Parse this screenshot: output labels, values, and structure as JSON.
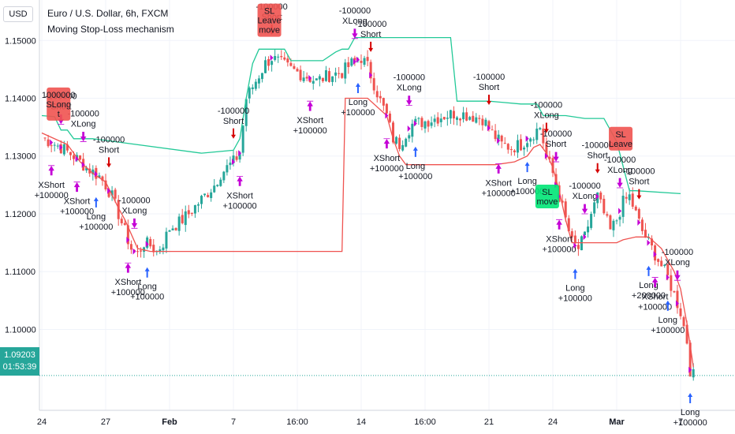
{
  "header": {
    "currency_button": "USD",
    "title": "Euro / U.S. Dollar, 6h, FXCM",
    "subtitle": "Moving Stop-Loss mechanism"
  },
  "price_tag": {
    "price": "1.09203",
    "countdown": "01:53:39"
  },
  "colors": {
    "up": "#26a69a",
    "down": "#ef5350",
    "long_line": "#ef5350",
    "short_line": "#22c997",
    "arrow_up": "#2962ff",
    "arrow_down": "#d50000",
    "exit": "#c400d6"
  },
  "chart_data": {
    "type": "candlestick",
    "title": "Euro / U.S. Dollar, 6h, FXCM",
    "subtitle": "Moving Stop-Loss mechanism",
    "y_ticks": [
      "1.15000",
      "1.14000",
      "1.13000",
      "1.12000",
      "1.11000",
      "1.10000"
    ],
    "y_tick_values": [
      1.15,
      1.14,
      1.13,
      1.12,
      1.11,
      1.1
    ],
    "ylim": [
      1.086,
      1.157
    ],
    "x_ticks": [
      "24",
      "27",
      "Feb",
      "7",
      "16:00",
      "14",
      "16:00",
      "21",
      "24",
      "Mar",
      "7"
    ],
    "x_tick_index": [
      0,
      20,
      40,
      60,
      80,
      100,
      120,
      140,
      160,
      180,
      200
    ],
    "grid": true,
    "close_path": [
      [
        0,
        1.1332
      ],
      [
        6,
        1.1315
      ],
      [
        10,
        1.13
      ],
      [
        14,
        1.128
      ],
      [
        18,
        1.1265
      ],
      [
        20,
        1.125
      ],
      [
        22,
        1.123
      ],
      [
        24,
        1.12
      ],
      [
        26,
        1.117
      ],
      [
        28,
        1.114
      ],
      [
        30,
        1.113
      ],
      [
        32,
        1.115
      ],
      [
        34,
        1.1145
      ],
      [
        36,
        1.1135
      ],
      [
        38,
        1.115
      ],
      [
        40,
        1.1175
      ],
      [
        43,
        1.1185
      ],
      [
        46,
        1.12
      ],
      [
        50,
        1.1225
      ],
      [
        54,
        1.125
      ],
      [
        56,
        1.127
      ],
      [
        58,
        1.128
      ],
      [
        60,
        1.129
      ],
      [
        62,
        1.1305
      ],
      [
        64,
        1.14
      ],
      [
        66,
        1.142
      ],
      [
        68,
        1.144
      ],
      [
        70,
        1.146
      ],
      [
        72,
        1.147
      ],
      [
        75,
        1.146
      ],
      [
        78,
        1.145
      ],
      [
        82,
        1.144
      ],
      [
        86,
        1.143
      ],
      [
        90,
        1.144
      ],
      [
        94,
        1.1445
      ],
      [
        97,
        1.146
      ],
      [
        100,
        1.147
      ],
      [
        102,
        1.1455
      ],
      [
        104,
        1.1425
      ],
      [
        106,
        1.1395
      ],
      [
        108,
        1.137
      ],
      [
        110,
        1.133
      ],
      [
        112,
        1.132
      ],
      [
        114,
        1.134
      ],
      [
        116,
        1.1355
      ],
      [
        120,
        1.136
      ],
      [
        126,
        1.137
      ],
      [
        130,
        1.1375
      ],
      [
        134,
        1.137
      ],
      [
        138,
        1.1365
      ],
      [
        141,
        1.134
      ],
      [
        144,
        1.132
      ],
      [
        147,
        1.1315
      ],
      [
        150,
        1.132
      ],
      [
        153,
        1.1335
      ],
      [
        156,
        1.135
      ],
      [
        158,
        1.13
      ],
      [
        160,
        1.127
      ],
      [
        162,
        1.123
      ],
      [
        164,
        1.119
      ],
      [
        166,
        1.115
      ],
      [
        168,
        1.114
      ],
      [
        170,
        1.116
      ],
      [
        172,
        1.12
      ],
      [
        174,
        1.123
      ],
      [
        176,
        1.12
      ],
      [
        178,
        1.117
      ],
      [
        180,
        1.119
      ],
      [
        182,
        1.122
      ],
      [
        184,
        1.123
      ],
      [
        186,
        1.12
      ],
      [
        188,
        1.117
      ],
      [
        190,
        1.115
      ],
      [
        192,
        1.113
      ],
      [
        194,
        1.111
      ],
      [
        196,
        1.109
      ],
      [
        198,
        1.106
      ],
      [
        200,
        1.103
      ],
      [
        202,
        1.098
      ],
      [
        203,
        1.093
      ],
      [
        204,
        1.092
      ]
    ],
    "series": [
      {
        "name": "",
        "color": "#ef5350",
        "points": [
          [
            0,
            1.134
          ],
          [
            8,
            1.132
          ],
          [
            12,
            1.129
          ],
          [
            16,
            1.127
          ],
          [
            20,
            1.1255
          ],
          [
            24,
            1.121
          ],
          [
            26,
            1.119
          ],
          [
            30,
            1.114
          ],
          [
            34,
            1.1135
          ],
          [
            40,
            1.1135
          ],
          [
            60,
            1.1135
          ],
          [
            68,
            1.1135
          ],
          [
            72,
            1.1135
          ],
          [
            90,
            1.1135
          ],
          [
            94,
            1.1135
          ],
          [
            95,
            1.14
          ],
          [
            102,
            1.14
          ],
          [
            108,
            1.137
          ],
          [
            110,
            1.133
          ],
          [
            112,
            1.13
          ],
          [
            114,
            1.1285
          ],
          [
            120,
            1.1285
          ],
          [
            138,
            1.1285
          ],
          [
            142,
            1.1285
          ],
          [
            148,
            1.129
          ],
          [
            152,
            1.13
          ],
          [
            154,
            1.1315
          ],
          [
            156,
            1.132
          ],
          [
            158,
            1.1305
          ],
          [
            160,
            1.128
          ],
          [
            162,
            1.124
          ],
          [
            164,
            1.119
          ],
          [
            166,
            1.115
          ],
          [
            168,
            1.115
          ],
          [
            174,
            1.115
          ],
          [
            180,
            1.115
          ],
          [
            182,
            1.1155
          ],
          [
            186,
            1.116
          ],
          [
            190,
            1.116
          ],
          [
            194,
            1.114
          ],
          [
            196,
            1.112
          ],
          [
            198,
            1.11
          ],
          [
            200,
            1.107
          ],
          [
            202,
            1.101
          ],
          [
            204,
            1.0935
          ]
        ]
      },
      {
        "name": "",
        "color": "#22c997",
        "points": [
          [
            0,
            1.137
          ],
          [
            4,
            1.1368
          ],
          [
            6,
            1.1345
          ],
          [
            8,
            1.1345
          ],
          [
            10,
            1.133
          ],
          [
            14,
            1.133
          ],
          [
            16,
            1.133
          ],
          [
            50,
            1.1305
          ],
          [
            60,
            1.131
          ],
          [
            62,
            1.133
          ],
          [
            64,
            1.14
          ],
          [
            66,
            1.146
          ],
          [
            68,
            1.1485
          ],
          [
            76,
            1.1485
          ],
          [
            78,
            1.1465
          ],
          [
            84,
            1.1465
          ],
          [
            88,
            1.1465
          ],
          [
            92,
            1.148
          ],
          [
            94,
            1.1485
          ],
          [
            96,
            1.1485
          ],
          [
            98,
            1.1505
          ],
          [
            128,
            1.1505
          ],
          [
            130,
            1.1395
          ],
          [
            140,
            1.1395
          ],
          [
            150,
            1.139
          ],
          [
            155,
            1.139
          ],
          [
            157,
            1.137
          ],
          [
            160,
            1.137
          ],
          [
            164,
            1.137
          ],
          [
            170,
            1.1365
          ],
          [
            176,
            1.1365
          ],
          [
            180,
            1.1325
          ],
          [
            184,
            1.124
          ],
          [
            186,
            1.124
          ],
          [
            200,
            1.1235
          ]
        ]
      }
    ],
    "signals": [
      {
        "i": 3,
        "side": "exit-up",
        "text": [
          "XShort",
          "+100000"
        ]
      },
      {
        "i": 6,
        "side": "exit-down",
        "text": [
          "-100000",
          "Short"
        ]
      },
      {
        "i": 13,
        "side": "exit-down",
        "text": [
          "-100000",
          "XLong"
        ]
      },
      {
        "i": 11,
        "side": "exit-up",
        "text": [
          "XShort",
          "+100000"
        ]
      },
      {
        "i": 17,
        "side": "long",
        "text": [
          "Long",
          "+100000"
        ]
      },
      {
        "i": 21,
        "side": "short",
        "text": [
          "-100000",
          "Short"
        ]
      },
      {
        "i": 29,
        "side": "exit-down",
        "text": [
          "-100000",
          "XLong"
        ]
      },
      {
        "i": 27,
        "side": "exit-up",
        "text": [
          "XShort",
          "+100000"
        ]
      },
      {
        "i": 33,
        "side": "long",
        "text": [
          "Long",
          "+100000"
        ]
      },
      {
        "i": 60,
        "side": "short",
        "text": [
          "-100000",
          "Short"
        ]
      },
      {
        "i": 62,
        "side": "exit-up",
        "text": [
          "XShort",
          "+100000"
        ]
      },
      {
        "i": 72,
        "side": "short",
        "text": [
          "-100000",
          "Short"
        ]
      },
      {
        "i": 84,
        "side": "exit-up",
        "text": [
          "XShort",
          "+100000"
        ]
      },
      {
        "i": 98,
        "side": "exit-down",
        "text": [
          "-100000",
          "XLong"
        ]
      },
      {
        "i": 99,
        "side": "long",
        "text": [
          "Long",
          "+100000"
        ]
      },
      {
        "i": 103,
        "side": "short",
        "text": [
          "-100000",
          "Short"
        ]
      },
      {
        "i": 108,
        "side": "exit-up",
        "text": [
          "XShort",
          "+100000"
        ]
      },
      {
        "i": 115,
        "side": "exit-down",
        "text": [
          "-100000",
          "XLong"
        ]
      },
      {
        "i": 117,
        "side": "long",
        "text": [
          "Long",
          "+100000"
        ]
      },
      {
        "i": 140,
        "side": "short",
        "text": [
          "-100000",
          "Short"
        ]
      },
      {
        "i": 143,
        "side": "exit-up",
        "text": [
          "XShort",
          "+100000"
        ]
      },
      {
        "i": 152,
        "side": "long",
        "text": [
          "Long",
          "+100000"
        ]
      },
      {
        "i": 158,
        "side": "short",
        "text": [
          "-100000",
          "XLong"
        ]
      },
      {
        "i": 161,
        "side": "exit-down",
        "text": [
          "-100000",
          "Short"
        ]
      },
      {
        "i": 162,
        "side": "exit-up",
        "text": [
          "XShort",
          "+100000"
        ]
      },
      {
        "i": 167,
        "side": "long",
        "text": [
          "Long",
          "+100000"
        ]
      },
      {
        "i": 170,
        "side": "exit-down",
        "text": [
          "-100000",
          "XLong"
        ]
      },
      {
        "i": 174,
        "side": "short",
        "text": [
          "-100000",
          "Short"
        ]
      },
      {
        "i": 181,
        "side": "exit-down",
        "text": [
          "-100000",
          "XLong"
        ]
      },
      {
        "i": 187,
        "side": "short",
        "text": [
          "-100000",
          "Short"
        ]
      },
      {
        "i": 190,
        "side": "long",
        "text": [
          "Long",
          "+200000"
        ]
      },
      {
        "i": 192,
        "side": "exit-up",
        "text": [
          "XShort",
          "+100000"
        ]
      },
      {
        "i": 196,
        "side": "long",
        "text": [
          "Long",
          "+100000"
        ]
      },
      {
        "i": 199,
        "side": "exit-down",
        "text": [
          "-100000",
          "XLong"
        ]
      },
      {
        "i": 203,
        "side": "long",
        "text": [
          "Long",
          "+100000"
        ]
      }
    ],
    "badges": [
      {
        "i": 5,
        "price": 1.139,
        "text": [
          "1000000",
          "SLong",
          "t"
        ],
        "color": "#ef5350"
      },
      {
        "i": 71,
        "price": 1.1535,
        "text": [
          "SL",
          "Leave",
          "move"
        ],
        "color": "#ef5350"
      },
      {
        "i": 158,
        "price": 1.123,
        "text": [
          "SL",
          "move"
        ],
        "color": "#00e676"
      },
      {
        "i": 181,
        "price": 1.133,
        "text": [
          "SL",
          "Leave"
        ],
        "color": "#ef5350"
      }
    ]
  }
}
